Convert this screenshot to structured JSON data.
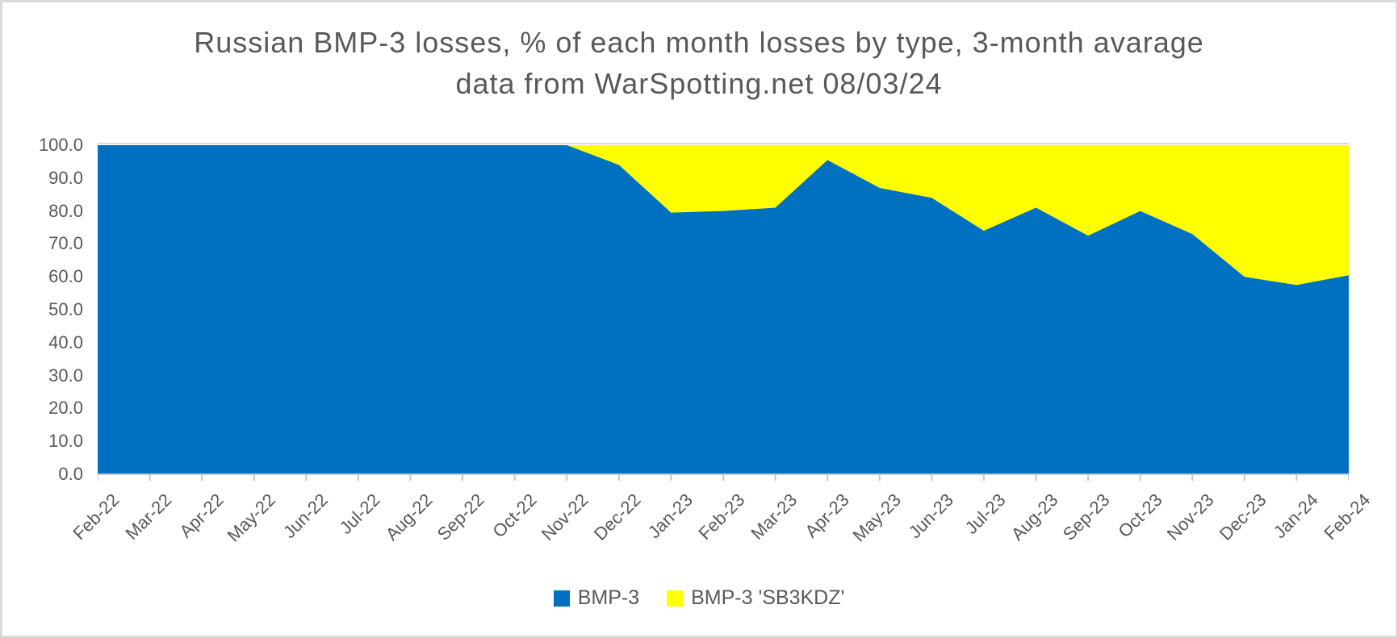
{
  "title": {
    "line1": "Russian BMP-3 losses, % of each month losses by type, 3-month avarage",
    "line2": "data from WarSpotting.net 08/03/24"
  },
  "colors": {
    "bmp3": "#0070C0",
    "sb3kdz": "#FFFF00",
    "text": "#595959",
    "axis_line": "#c6c6c6",
    "gridline": "#dcd9d2"
  },
  "y_axis": {
    "min": 0,
    "max": 100,
    "step": 10,
    "tick_labels": [
      "0.0",
      "10.0",
      "20.0",
      "30.0",
      "40.0",
      "50.0",
      "60.0",
      "70.0",
      "80.0",
      "90.0",
      "100.0"
    ]
  },
  "legend": [
    {
      "label": "BMP-3",
      "color": "#0070C0"
    },
    {
      "label": "BMP-3 'SB3KDZ'",
      "color": "#FFFF00"
    }
  ],
  "chart_data": {
    "type": "area",
    "stacked": true,
    "title": "Russian BMP-3 losses, % of each month losses by type, 3-month avarage data from WarSpotting.net 08/03/24",
    "xlabel": "",
    "ylabel": "",
    "ylim": [
      0,
      100
    ],
    "grid": "top-line-only",
    "legend_position": "bottom",
    "categories": [
      "Feb-22",
      "Mar-22",
      "Apr-22",
      "May-22",
      "Jun-22",
      "Jul-22",
      "Aug-22",
      "Sep-22",
      "Oct-22",
      "Nov-22",
      "Dec-22",
      "Jan-23",
      "Feb-23",
      "Mar-23",
      "Apr-23",
      "May-23",
      "Jun-23",
      "Jul-23",
      "Aug-23",
      "Sep-23",
      "Oct-23",
      "Nov-23",
      "Dec-23",
      "Jan-24",
      "Feb-24"
    ],
    "series": [
      {
        "name": "BMP-3",
        "color": "#0070C0",
        "values": [
          100,
          100,
          100,
          100,
          100,
          100,
          100,
          100,
          100,
          100,
          94,
          79.5,
          80,
          81,
          95.5,
          87,
          84,
          74,
          81,
          72.5,
          80,
          73,
          60,
          57.5,
          60.5
        ]
      },
      {
        "name": "BMP-3 'SB3KDZ'",
        "color": "#FFFF00",
        "values": [
          0,
          0,
          0,
          0,
          0,
          0,
          0,
          0,
          0,
          0,
          6,
          20.5,
          20,
          19,
          4.5,
          13,
          16,
          26,
          19,
          27.5,
          20,
          27,
          40,
          42.5,
          39.5
        ]
      }
    ]
  }
}
